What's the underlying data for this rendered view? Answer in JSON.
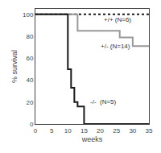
{
  "chart_data": {
    "type": "line",
    "xlabel": "weeks",
    "ylabel": "% survival",
    "xlim": [
      0,
      35
    ],
    "ylim": [
      0,
      105
    ],
    "xticks": [
      0,
      5,
      10,
      15,
      20,
      25,
      30,
      35
    ],
    "yticks": [
      0,
      20,
      40,
      60,
      80,
      100
    ],
    "grid": false,
    "series": [
      {
        "color": "#1a1a1a",
        "line_style": "dotted",
        "x": [
          0,
          35
        ],
        "values": [
          100,
          100
        ]
      },
      {
        "color": "#999999",
        "line_style": "solid",
        "x": [
          0,
          13,
          13,
          26,
          26,
          30,
          30,
          35
        ],
        "values": [
          100,
          100,
          85,
          85,
          79,
          79,
          71,
          71
        ]
      },
      {
        "color": "#1a1a1a",
        "line_style": "solid",
        "x": [
          0,
          10,
          10,
          11,
          11,
          12,
          12,
          13,
          13,
          15,
          15,
          35
        ],
        "values": [
          100,
          100,
          50,
          50,
          33,
          33,
          20,
          20,
          16,
          16,
          0,
          0
        ]
      }
    ],
    "annotations": [
      {
        "text": "+/+ (N=6)",
        "x": 20.5,
        "y": 99.5
      },
      {
        "text": "+/- (N=14)",
        "x": 19.5,
        "y": 76
      },
      {
        "text": "-/-  (N=5)",
        "x": 16.5,
        "y": 25
      }
    ]
  }
}
